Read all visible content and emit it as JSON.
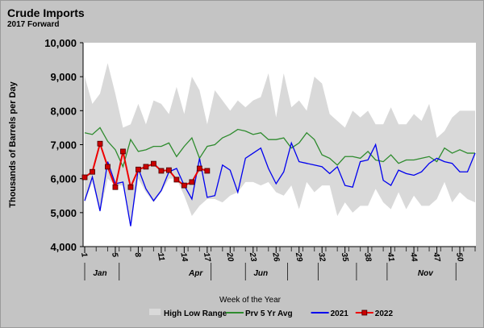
{
  "chart_data": {
    "type": "line",
    "title": "Crude Imports",
    "subtitle": "2017 Forward",
    "xlabel": "Week of the Year",
    "ylabel": "Thousands of Barrels per Day",
    "ylim": [
      4000,
      10000
    ],
    "yticks": [
      "4,000",
      "5,000",
      "6,000",
      "7,000",
      "8,000",
      "9,000",
      "10,000"
    ],
    "ytick_values": [
      4000,
      5000,
      6000,
      7000,
      8000,
      9000,
      10000
    ],
    "xlim": [
      1,
      52
    ],
    "xtick_labels": [
      "1",
      "5",
      "8",
      "11",
      "14",
      "17",
      "20",
      "23",
      "26",
      "29",
      "32",
      "35",
      "38",
      "41",
      "44",
      "47",
      "50"
    ],
    "month_labels": [
      {
        "label": "Jan",
        "week": 3
      },
      {
        "label": "Apr",
        "week": 15.5
      },
      {
        "label": "Jun",
        "week": 24
      },
      {
        "label": "Nov",
        "week": 45.5
      }
    ],
    "month_dividers": [
      1,
      5.5,
      17.5,
      22,
      27.5,
      31.5,
      36.5,
      40.5,
      49.5
    ],
    "legend_position": "bottom",
    "range": {
      "name": "High Low Range",
      "color": "#d9d9d9",
      "high": [
        9000,
        8200,
        8500,
        9400,
        8500,
        7500,
        7600,
        8200,
        7600,
        8300,
        8200,
        7900,
        8700,
        7900,
        9000,
        8600,
        7600,
        8600,
        8300,
        8000,
        8300,
        8100,
        8300,
        8400,
        9100,
        7800,
        9100,
        8100,
        8300,
        8000,
        9000,
        8800,
        7900,
        7700,
        7500,
        8000,
        7800,
        8000,
        7600,
        7600,
        8100,
        7600,
        7600,
        7900,
        7700,
        8200,
        7200,
        7400,
        7800,
        8000,
        8000,
        8000
      ],
      "low": [
        5300,
        5900,
        5000,
        6000,
        5800,
        5800,
        4600,
        6000,
        5600,
        5300,
        5600,
        6000,
        6000,
        5500,
        4900,
        5200,
        5400,
        5400,
        5300,
        5500,
        5600,
        5900,
        5900,
        5800,
        5900,
        5600,
        5500,
        5800,
        5100,
        5900,
        5600,
        5800,
        5800,
        4900,
        5300,
        5000,
        5200,
        5200,
        5700,
        5300,
        5100,
        5600,
        5100,
        5500,
        5200,
        5200,
        5400,
        5900,
        5300,
        5600,
        5400,
        5300
      ]
    },
    "series": [
      {
        "name": "Prv 5 Yr Avg",
        "color": "#2e8b2e",
        "marker": false,
        "values": [
          7350,
          7300,
          7500,
          7100,
          6850,
          6350,
          7150,
          6800,
          6850,
          6950,
          6950,
          7050,
          6650,
          6950,
          7200,
          6600,
          6950,
          7000,
          7200,
          7300,
          7450,
          7400,
          7300,
          7350,
          7150,
          7150,
          7200,
          6900,
          7050,
          7350,
          7150,
          6700,
          6600,
          6400,
          6650,
          6650,
          6600,
          6800,
          6550,
          6500,
          6700,
          6450,
          6550,
          6550,
          6600,
          6650,
          6500,
          6900,
          6750,
          6850,
          6750,
          6750
        ]
      },
      {
        "name": "2021",
        "color": "#0000ee",
        "marker": false,
        "values": [
          5350,
          6050,
          5050,
          6500,
          5850,
          5900,
          4600,
          6300,
          5700,
          5350,
          5650,
          6200,
          6300,
          5800,
          5400,
          6600,
          5450,
          5500,
          6400,
          6250,
          5600,
          6600,
          6750,
          6900,
          6300,
          5850,
          6200,
          7050,
          6500,
          6450,
          6400,
          6350,
          6150,
          6350,
          5800,
          5750,
          6500,
          6550,
          7000,
          5950,
          5800,
          6250,
          6150,
          6100,
          6200,
          6450,
          6600,
          6500,
          6450,
          6200,
          6200,
          6750
        ]
      },
      {
        "name": "2022",
        "color": "#ee0000",
        "marker": true,
        "values": [
          6040,
          6200,
          7030,
          6350,
          5750,
          6800,
          5750,
          6270,
          6350,
          6440,
          6230,
          6250,
          5970,
          5800,
          5900,
          6300,
          6230
        ]
      }
    ]
  }
}
